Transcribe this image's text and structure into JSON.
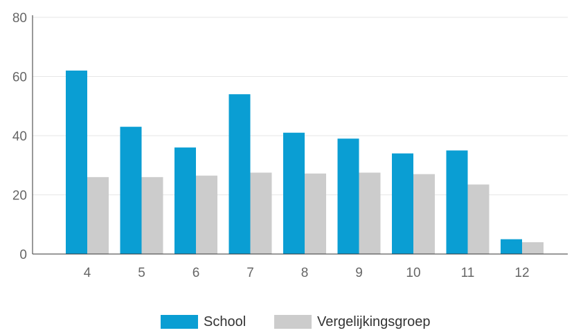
{
  "chart_data": {
    "type": "bar",
    "categories": [
      "4",
      "5",
      "6",
      "7",
      "8",
      "9",
      "10",
      "11",
      "12"
    ],
    "series": [
      {
        "name": "School",
        "color": "#0a9ed3",
        "values": [
          62,
          43,
          36,
          54,
          41,
          39,
          34,
          35,
          5
        ]
      },
      {
        "name": "Vergelijkingsgroep",
        "color": "#cccccc",
        "values": [
          26,
          26,
          26.5,
          27.5,
          27.2,
          27.5,
          27,
          23.5,
          4
        ]
      }
    ],
    "y_ticks": [
      "0",
      "20",
      "40",
      "60",
      "80"
    ],
    "ylim": [
      0,
      80
    ],
    "grid": true,
    "legend": "bottom-center"
  }
}
